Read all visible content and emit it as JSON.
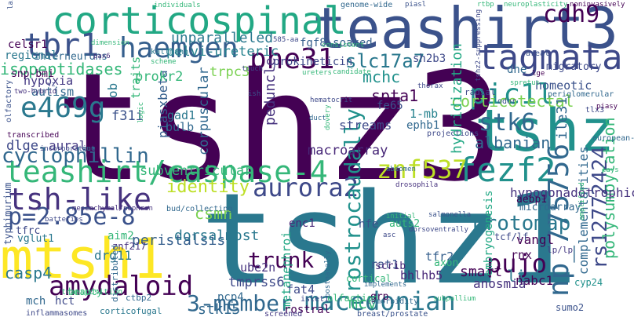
{
  "words": [
    {
      "text": "tshz3",
      "color": "#440154"
    },
    {
      "text": "tshz1",
      "color": "#2a788e"
    },
    {
      "text": "teashirt3",
      "color": "#3b528b"
    },
    {
      "text": "tshz",
      "color": "#21918c"
    },
    {
      "text": "corticospinal",
      "color": "#22a884"
    },
    {
      "text": "teashirt/caspase-4",
      "color": "#35b779"
    },
    {
      "text": "mtsh1",
      "color": "#fde725"
    },
    {
      "text": "tagmata",
      "color": "#3e4989"
    },
    {
      "text": "haemgen",
      "color": "#355f8d"
    },
    {
      "text": "tbr1",
      "color": "#3b528b"
    },
    {
      "text": "pic1l",
      "color": "#21918c"
    },
    {
      "text": "phe31",
      "color": "#440154"
    },
    {
      "text": "e469g",
      "color": "#2a788e"
    },
    {
      "text": "tsh-like",
      "color": "#46327e"
    },
    {
      "text": "aurora2",
      "color": "#3e4989"
    },
    {
      "text": "fezf2",
      "color": "#21918c"
    },
    {
      "text": "amydaloid",
      "color": "#440154"
    },
    {
      "text": "macedonian",
      "color": "#2a788e"
    },
    {
      "text": "np_775756",
      "color": "#31688e"
    },
    {
      "text": "rs12772424",
      "color": "#3e4989"
    },
    {
      "text": "cdh9",
      "color": "#440154"
    },
    {
      "text": "stk6",
      "color": "#31688e"
    },
    {
      "text": "znf537",
      "color": "#bddf26"
    },
    {
      "text": "p=2.85e-8",
      "color": "#3b528b"
    },
    {
      "text": "pujo",
      "color": "#440154"
    },
    {
      "text": "3-member",
      "color": "#31688e"
    },
    {
      "text": "cyclophillin",
      "color": "#31688e"
    },
    {
      "text": "identity",
      "color": "#bddf26"
    },
    {
      "text": "protomap",
      "color": "#2a788e"
    },
    {
      "text": "trunk",
      "color": "#440154"
    },
    {
      "text": "slc17a7",
      "color": "#2a788e"
    },
    {
      "text": "corticotectal",
      "color": "#7ad151"
    },
    {
      "text": "albanian",
      "color": "#31688e"
    },
    {
      "text": "spta1",
      "color": "#440154"
    },
    {
      "text": "mchc",
      "color": "#21918c"
    },
    {
      "text": "hydridization",
      "color": "#22a884"
    },
    {
      "text": "polysumoylation",
      "color": "#35b779"
    },
    {
      "text": "rostrocaudally",
      "color": "#21918c"
    },
    {
      "text": "limbs",
      "color": "#2a788e"
    },
    {
      "text": "complementarities",
      "color": "#31688e"
    },
    {
      "text": "prokineticin",
      "color": "#3e4989"
    },
    {
      "text": "fgf8-soaked",
      "color": "#355f8d"
    },
    {
      "text": "unparalleled",
      "color": "#2a788e"
    },
    {
      "text": "pelvi-ureteric",
      "color": "#26828e"
    },
    {
      "text": "isopeptidases",
      "color": "#35b779"
    },
    {
      "text": "hypogonadotrophic",
      "color": "#46327e"
    },
    {
      "text": "csmn",
      "color": "#7ad151"
    },
    {
      "text": "peristalsis",
      "color": "#355f8d"
    },
    {
      "text": "dorsalmost",
      "color": "#2a788e"
    },
    {
      "text": "subventricular",
      "color": "#35b779"
    },
    {
      "text": "macroarray",
      "color": "#482878"
    },
    {
      "text": "casp4",
      "color": "#2a788e"
    },
    {
      "text": "smart",
      "color": "#440154"
    },
    {
      "text": "mcv",
      "color": "#35b779"
    },
    {
      "text": "stk15",
      "color": "#31688e"
    },
    {
      "text": "drg11",
      "color": "#2a788e"
    },
    {
      "text": "ube2n",
      "color": "#46327e"
    },
    {
      "text": "tmprss6",
      "color": "#3e4989"
    },
    {
      "text": "nabc1",
      "color": "#440154"
    },
    {
      "text": "vangl",
      "color": "#440154"
    },
    {
      "text": "rat1",
      "color": "#3b528b"
    },
    {
      "text": "bhlhb5",
      "color": "#482878"
    },
    {
      "text": "fat4",
      "color": "#3e4989"
    },
    {
      "text": "pcp4",
      "color": "#31688e"
    },
    {
      "text": "anosmia",
      "color": "#46327e"
    },
    {
      "text": "tfr2",
      "color": "#355f8d"
    },
    {
      "text": "rnx",
      "color": "#440154"
    },
    {
      "text": "ile31",
      "color": "#31688e"
    },
    {
      "text": "embryogenesis",
      "color": "#22a884"
    },
    {
      "text": "hypoxia",
      "color": "#443983"
    },
    {
      "text": "autism",
      "color": "#31688e"
    },
    {
      "text": "f31i",
      "color": "#3b528b"
    },
    {
      "text": "ob",
      "color": "#2a788e"
    },
    {
      "text": "traits",
      "color": "#35b779"
    },
    {
      "text": "piasxbeta",
      "color": "#355f8d"
    },
    {
      "text": "corpuscular",
      "color": "#31688e"
    },
    {
      "text": "peduncle",
      "color": "#46327e"
    },
    {
      "text": "streams",
      "color": "#3e4989"
    },
    {
      "text": "1-mb",
      "color": "#26828e"
    },
    {
      "text": "fe65",
      "color": "#3b528b"
    },
    {
      "text": "ephb1",
      "color": "#31688e"
    },
    {
      "text": "bulb",
      "color": "#31688e"
    },
    {
      "text": "gad1",
      "color": "#2a788e"
    },
    {
      "text": "dlge",
      "color": "#3e4989"
    },
    {
      "text": "aural",
      "color": "#443983"
    },
    {
      "text": "prokr2",
      "color": "#35b779"
    },
    {
      "text": "trpc3",
      "color": "#7ad151"
    },
    {
      "text": "sh2b3",
      "color": "#3e4989"
    },
    {
      "text": "homeotic",
      "color": "#3b528b"
    },
    {
      "text": "dhe",
      "color": "#31688e"
    },
    {
      "text": "migratory",
      "color": "#3e4989"
    },
    {
      "text": "celsr1",
      "color": "#440154"
    },
    {
      "text": "regional",
      "color": "#2a788e"
    },
    {
      "text": "interneurons",
      "color": "#31688e"
    },
    {
      "text": "snp-bmi",
      "color": "#440154"
    },
    {
      "text": "hfe",
      "color": "#3b528b"
    },
    {
      "text": "auts2",
      "color": "#35b779"
    },
    {
      "text": "enc1",
      "color": "#482878"
    },
    {
      "text": "aim2",
      "color": "#35b779"
    },
    {
      "text": "znf217",
      "color": "#46327e"
    },
    {
      "text": "tfrc",
      "color": "#3e4989"
    },
    {
      "text": "vglut1",
      "color": "#2a788e"
    },
    {
      "text": "typhimurium",
      "color": "#3b528b"
    },
    {
      "text": "beauty",
      "color": "#35b779"
    },
    {
      "text": "ctbp2",
      "color": "#31688e"
    },
    {
      "text": "mch",
      "color": "#31688e"
    },
    {
      "text": "hct",
      "color": "#3e4989"
    },
    {
      "text": "metanephroi",
      "color": "#22a884"
    },
    {
      "text": "scrib",
      "color": "#482878"
    },
    {
      "text": "grp",
      "color": "#440154"
    },
    {
      "text": "axon",
      "color": "#35b779"
    },
    {
      "text": "cyp24",
      "color": "#21918c"
    },
    {
      "text": "aebp1",
      "color": "#440154"
    },
    {
      "text": "microarray",
      "color": "#31688e"
    },
    {
      "text": "tcf/lf",
      "color": "#3e4989"
    },
    {
      "text": "lp/lp",
      "color": "#443983"
    },
    {
      "text": "sumo2",
      "color": "#3b528b"
    },
    {
      "text": "rostral",
      "color": "#440154"
    },
    {
      "text": "olfaction",
      "color": "#35b779"
    },
    {
      "text": "cortical",
      "color": "#35b779"
    },
    {
      "text": "corticofugal",
      "color": "#2a788e"
    },
    {
      "text": "inflammasomes",
      "color": "#3e4989"
    },
    {
      "text": "islet1",
      "color": "#3e4989"
    },
    {
      "text": "screened",
      "color": "#443983"
    },
    {
      "text": "breast/prostate",
      "color": "#3b528b"
    },
    {
      "text": "distributed",
      "color": "#31688e"
    },
    {
      "text": "kallmann",
      "color": "#2a788e"
    },
    {
      "text": "scheme",
      "color": "#35b779"
    },
    {
      "text": "touch",
      "color": "#3e4989"
    },
    {
      "text": "ureters",
      "color": "#35b779"
    },
    {
      "text": "radial",
      "color": "#3e4989"
    },
    {
      "text": "odor",
      "color": "#3b528b"
    },
    {
      "text": "periglomerular",
      "color": "#31688e"
    },
    {
      "text": "tlx3",
      "color": "#3e4989"
    },
    {
      "text": "european-american",
      "color": "#31688e"
    },
    {
      "text": "thorax",
      "color": "#3e4989"
    },
    {
      "text": "olfactory",
      "color": "#3b528b"
    },
    {
      "text": "transcribed",
      "color": "#440154"
    },
    {
      "text": "two-hybrid",
      "color": "#46327e"
    },
    {
      "text": "incorporating",
      "color": "#3e4989"
    },
    {
      "text": "gut",
      "color": "#31688e"
    },
    {
      "text": "genome-wide",
      "color": "#31688e"
    },
    {
      "text": "piasl",
      "color": "#3b528b"
    },
    {
      "text": "neuroplasticity",
      "color": "#35b779"
    },
    {
      "text": "noninvasively",
      "color": "#440154"
    },
    {
      "text": "areal",
      "color": "#3b528b"
    },
    {
      "text": "lge",
      "color": "#440154"
    },
    {
      "text": "consistent",
      "color": "#35b779"
    },
    {
      "text": "585-aa",
      "color": "#3e4989"
    },
    {
      "text": "dimension",
      "color": "#35b779"
    },
    {
      "text": "pax6",
      "color": "#46327e"
    },
    {
      "text": "ish",
      "color": "#3b528b"
    },
    {
      "text": "hematocrit",
      "color": "#3e4989"
    },
    {
      "text": "duct",
      "color": "#31688e"
    },
    {
      "text": "logic",
      "color": "#35b779"
    },
    {
      "text": "dovery",
      "color": "#35b779"
    },
    {
      "text": "projections",
      "color": "#3e4989"
    },
    {
      "text": "abdomen",
      "color": "#31688e"
    },
    {
      "text": "drosophila",
      "color": "#46327e"
    },
    {
      "text": "salmonella",
      "color": "#3b528b"
    },
    {
      "text": "dorsoventrally",
      "color": "#3e4989"
    },
    {
      "text": "bud/collecting",
      "color": "#31688e"
    },
    {
      "text": "mesenchymal/nephron",
      "color": "#46327e"
    },
    {
      "text": "batteries",
      "color": "#3e4989"
    },
    {
      "text": "transposition",
      "color": "#35b779"
    },
    {
      "text": "implements",
      "color": "#31688e"
    },
    {
      "text": "comorbidity",
      "color": "#31688e"
    },
    {
      "text": "subpallium",
      "color": "#35b779"
    },
    {
      "text": "amplified",
      "color": "#35b779"
    },
    {
      "text": "postnatally",
      "color": "#31688e"
    },
    {
      "text": "initial",
      "color": "#35b779"
    },
    {
      "text": "asc",
      "color": "#3e4989"
    },
    {
      "text": "lays",
      "color": "#35b779"
    },
    {
      "text": "piasy",
      "color": "#440154"
    },
    {
      "text": "laid",
      "color": "#3b528b"
    },
    {
      "text": "individuals",
      "color": "#35b779"
    },
    {
      "text": "vz",
      "color": "#3e4989"
    },
    {
      "text": "rtbp",
      "color": "#35b779"
    },
    {
      "text": "tshz2-suppressing",
      "color": "#3e4989"
    },
    {
      "text": "spretus",
      "color": "#35b779"
    },
    {
      "text": "candidate",
      "color": "#35b779"
    }
  ]
}
